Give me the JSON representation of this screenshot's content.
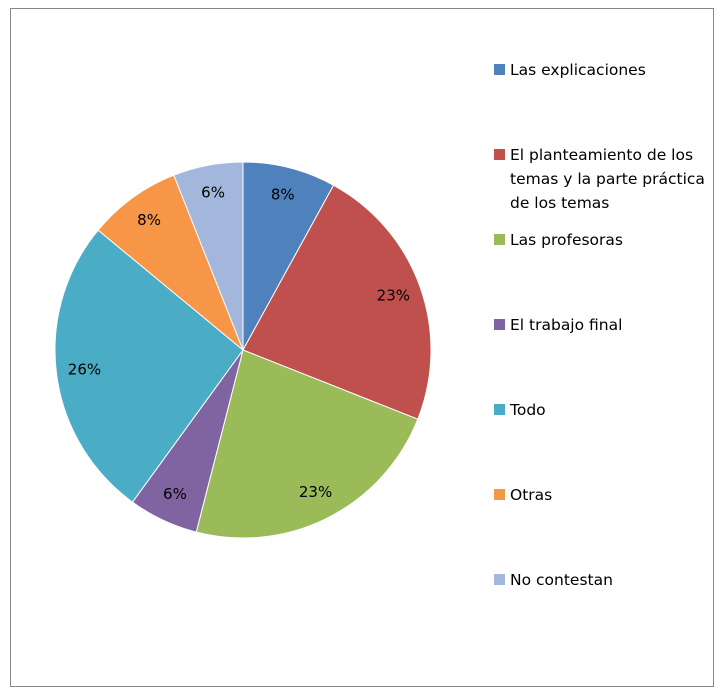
{
  "chart_data": {
    "type": "pie",
    "categories": [
      "Las explicaciones",
      "El planteamiento de los temas y la parte práctica de los temas",
      "Las profesoras",
      "El trabajo final",
      "Todo",
      "Otras",
      "No contestan"
    ],
    "values": [
      8,
      23,
      23,
      6,
      26,
      8,
      6
    ],
    "value_labels": [
      "8%",
      "23%",
      "23%",
      "6%",
      "26%",
      "8%",
      "6%"
    ],
    "colors": [
      "#4f81bd",
      "#c0504d",
      "#9bbb59",
      "#8064a2",
      "#4bacc6",
      "#f79646",
      "#a3b6db"
    ],
    "legend": "right"
  }
}
